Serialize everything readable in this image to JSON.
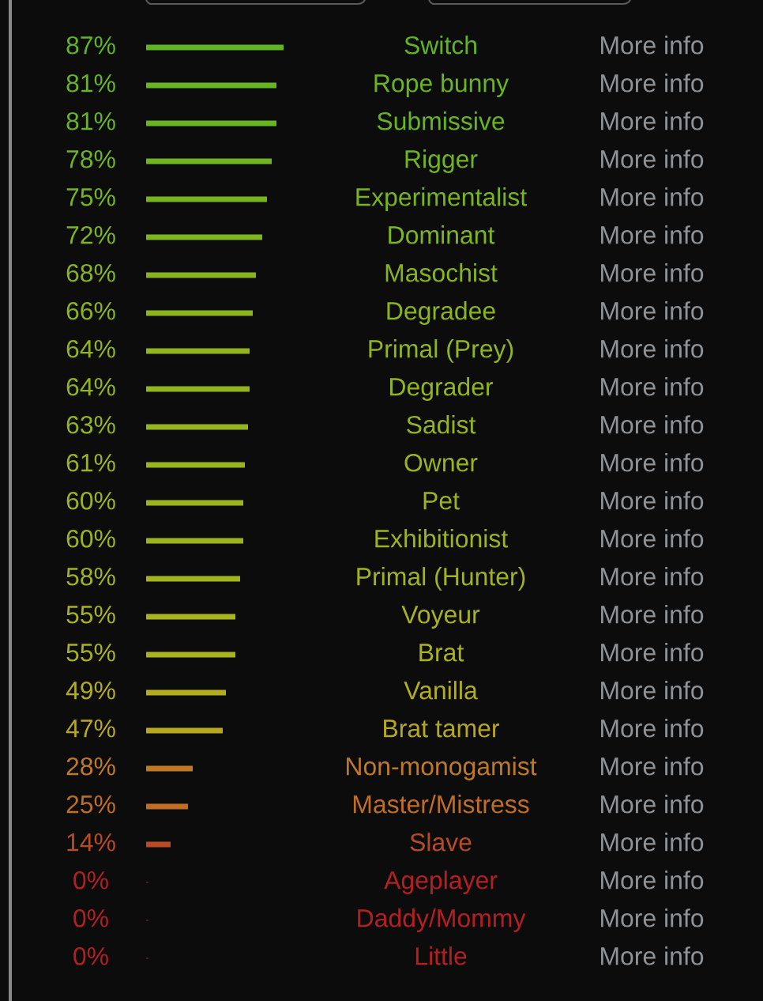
{
  "chart_data": {
    "type": "bar",
    "orientation": "horizontal",
    "categories": [
      "Switch",
      "Rope bunny",
      "Submissive",
      "Rigger",
      "Experimentalist",
      "Dominant",
      "Masochist",
      "Degradee",
      "Primal (Prey)",
      "Degrader",
      "Sadist",
      "Owner",
      "Pet",
      "Exhibitionist",
      "Primal (Hunter)",
      "Voyeur",
      "Brat",
      "Vanilla",
      "Brat tamer",
      "Non-monogamist",
      "Master/Mistress",
      "Slave",
      "Ageplayer",
      "Daddy/Mommy",
      "Little"
    ],
    "values": [
      87,
      81,
      81,
      78,
      75,
      72,
      68,
      66,
      64,
      64,
      63,
      61,
      60,
      60,
      58,
      55,
      55,
      49,
      47,
      28,
      25,
      14,
      0,
      0,
      0
    ],
    "value_labels": [
      "87%",
      "81%",
      "81%",
      "78%",
      "75%",
      "72%",
      "68%",
      "66%",
      "64%",
      "64%",
      "63%",
      "61%",
      "60%",
      "60%",
      "58%",
      "55%",
      "55%",
      "49%",
      "47%",
      "28%",
      "25%",
      "14%",
      "0%",
      "0%",
      "0%"
    ],
    "colors": [
      "#5fb523",
      "#68b522",
      "#68b522",
      "#70b521",
      "#77b520",
      "#7eb520",
      "#88b41f",
      "#8cb41f",
      "#92b41f",
      "#92b41f",
      "#95b41f",
      "#99b41f",
      "#9cb41f",
      "#9cb41f",
      "#a1b41f",
      "#a8b31f",
      "#a8b31f",
      "#b2ae1f",
      "#b6a81f",
      "#c07a26",
      "#c06d26",
      "#b84a26",
      "#b41f22",
      "#b41f22",
      "#b41f22"
    ],
    "annotations": [
      "More info",
      "More info",
      "More info",
      "More info",
      "More info",
      "More info",
      "More info",
      "More info",
      "More info",
      "More info",
      "More info",
      "More info",
      "More info",
      "More info",
      "More info",
      "More info",
      "More info",
      "More info",
      "More info",
      "More info",
      "More info",
      "More info",
      "More info",
      "More info",
      "More info"
    ]
  }
}
